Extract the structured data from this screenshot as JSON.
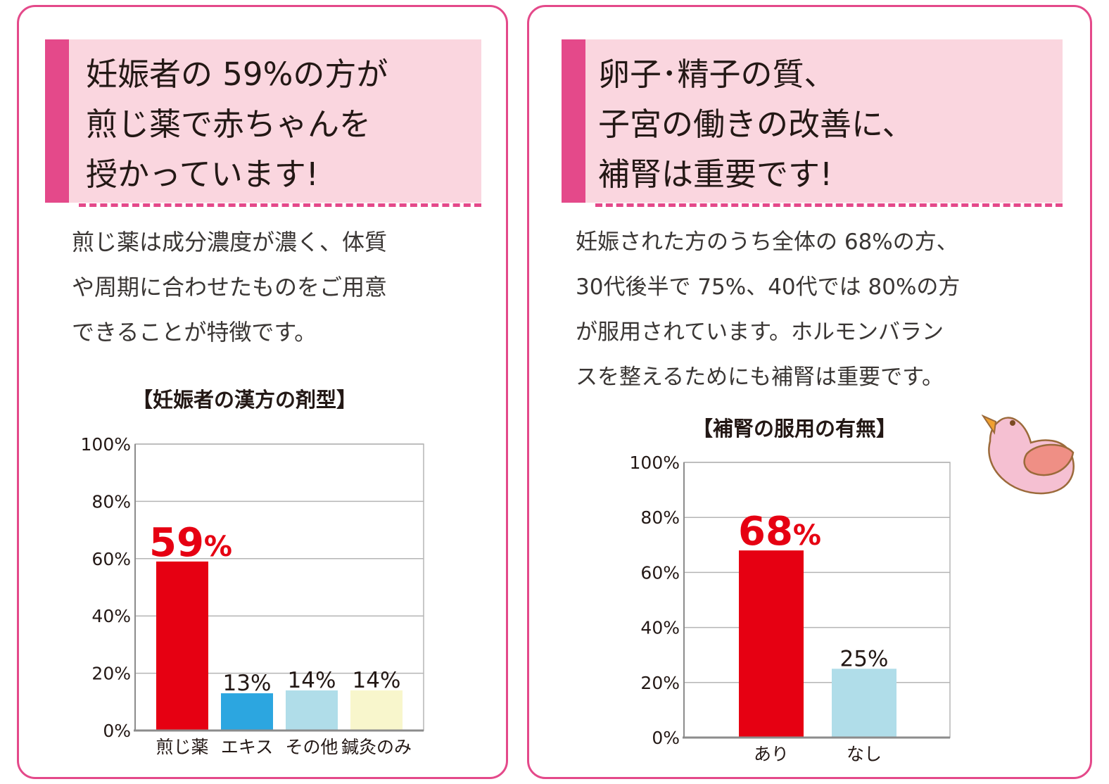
{
  "left_card": {
    "headline": [
      "妊娠者の 59%の方が",
      "煎じ薬で赤ちゃんを",
      "授かっています!"
    ],
    "body": [
      "煎じ薬は成分濃度が濃く、体質",
      "や周期に合わせたものをご用意",
      "できることが特徴です。"
    ]
  },
  "right_card": {
    "headline": [
      "卵子･精子の質、",
      "子宮の働きの改善に、",
      "補腎は重要です!"
    ],
    "body": [
      "妊娠された方のうち全体の 68%の方、",
      "30代後半で 75%、40代では 80%の方",
      "が服用されています。ホルモンバラン",
      "スを整えるためにも補腎は重要です。"
    ]
  },
  "colors": {
    "pink_accent": "#e4498a",
    "pink_light": "#fad6df",
    "highlight_red": "#e60012",
    "blue": "#2ca6e0",
    "light_blue": "#b0dde9",
    "cream": "#f8f6cc"
  },
  "decoration": {
    "chick": "chick-icon"
  },
  "chart_data": [
    {
      "type": "bar",
      "title": "【妊娠者の漢方の剤型】",
      "categories": [
        "煎じ薬",
        "エキス",
        "その他",
        "鍼灸のみ"
      ],
      "values": [
        59,
        13,
        14,
        14
      ],
      "value_labels": [
        "59%",
        "13%",
        "14%",
        "14%"
      ],
      "bar_colors": [
        "#e60012",
        "#2ca6e0",
        "#b0dde9",
        "#f8f6cc"
      ],
      "highlight_index": 0,
      "ylim": [
        0,
        100
      ],
      "yticks": [
        "0%",
        "20%",
        "40%",
        "60%",
        "80%",
        "100%"
      ],
      "grid": true
    },
    {
      "type": "bar",
      "title": "【補腎の服用の有無】",
      "categories": [
        "あり",
        "なし"
      ],
      "values": [
        68,
        25
      ],
      "value_labels": [
        "68%",
        "25%"
      ],
      "bar_colors": [
        "#e60012",
        "#b0dde9"
      ],
      "highlight_index": 0,
      "ylim": [
        0,
        100
      ],
      "yticks": [
        "0%",
        "20%",
        "40%",
        "60%",
        "80%",
        "100%"
      ],
      "grid": true
    }
  ]
}
